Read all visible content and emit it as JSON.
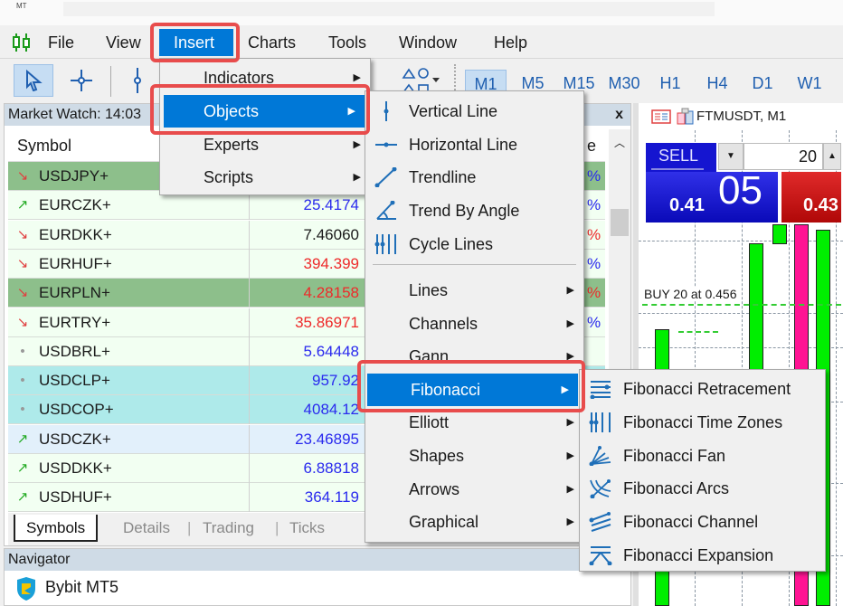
{
  "window": {
    "title_fragment": "MT"
  },
  "menubar": {
    "items": [
      "File",
      "View",
      "Insert",
      "Charts",
      "Tools",
      "Window",
      "Help"
    ],
    "active": "Insert"
  },
  "toolbar": {
    "timeframes": [
      "M1",
      "M5",
      "M15",
      "M30",
      "H1",
      "H4",
      "D1",
      "W1"
    ],
    "active_timeframe": "M1"
  },
  "market_watch": {
    "title": "Market Watch: 14:03",
    "close": "x",
    "column_symbol": "Symbol",
    "column_change_fragment": "e",
    "rows": [
      {
        "symbol": "USDJPY+",
        "price": "",
        "trend": "down",
        "pct": "%",
        "price_color": "#1a1a1a",
        "pct_color": "#2a2aee",
        "bg": "#8dbf8b"
      },
      {
        "symbol": "EURCZK+",
        "price": "25.4174",
        "trend": "up",
        "pct": "%",
        "price_color": "#2a2aee",
        "pct_color": "#2a2aee",
        "bg": "#f2fff2"
      },
      {
        "symbol": "EURDKK+",
        "price": "7.46060",
        "trend": "down",
        "pct": "%",
        "price_color": "#1a1a1a",
        "pct_color": "#ee2a2a",
        "bg": "#f2fff2"
      },
      {
        "symbol": "EURHUF+",
        "price": "394.399",
        "trend": "down",
        "pct": "%",
        "price_color": "#ee2a2a",
        "pct_color": "#2a2aee",
        "bg": "#f2fff2"
      },
      {
        "symbol": "EURPLN+",
        "price": "4.28158",
        "trend": "down",
        "pct": "%",
        "price_color": "#ee2a2a",
        "pct_color": "#ee2a2a",
        "bg": "#8dbf8b"
      },
      {
        "symbol": "EURTRY+",
        "price": "35.86971",
        "trend": "down",
        "pct": "%",
        "price_color": "#ee2a2a",
        "pct_color": "#2a2aee",
        "bg": "#f2fff2"
      },
      {
        "symbol": "USDBRL+",
        "price": "5.64448",
        "trend": "flat",
        "pct": "",
        "price_color": "#2a2aee",
        "pct_color": "#2a2aee",
        "bg": "#f2fff2"
      },
      {
        "symbol": "USDCLP+",
        "price": "957.92",
        "trend": "flat",
        "pct": "",
        "price_color": "#2a2aee",
        "pct_color": "#2a2aee",
        "bg": "#aeeaea"
      },
      {
        "symbol": "USDCOP+",
        "price": "4084.12",
        "trend": "flat",
        "pct": "",
        "price_color": "#2a2aee",
        "pct_color": "#2a2aee",
        "bg": "#aeeaea"
      },
      {
        "symbol": "USDCZK+",
        "price": "23.46895",
        "trend": "up",
        "pct": "",
        "price_color": "#2a2aee",
        "pct_color": "#2a2aee",
        "bg": "#e2f0fb"
      },
      {
        "symbol": "USDDKK+",
        "price": "6.88818",
        "trend": "up",
        "pct": "",
        "price_color": "#2a2aee",
        "pct_color": "#2a2aee",
        "bg": "#f2fff2"
      },
      {
        "symbol": "USDHUF+",
        "price": "364.119",
        "trend": "up",
        "pct": "",
        "price_color": "#2a2aee",
        "pct_color": "#2a2aee",
        "bg": "#f2fff2"
      }
    ],
    "tabs": [
      "Symbols",
      "Details",
      "Trading",
      "Ticks"
    ],
    "active_tab": "Symbols"
  },
  "navigator": {
    "title": "Navigator",
    "items": [
      "Bybit MT5"
    ]
  },
  "chart": {
    "symbol": "FTMUSDT, M1",
    "sell_label": "SELL",
    "volume": "20",
    "bid_small": "0.41",
    "bid_big": "05",
    "ask_small": "0.43",
    "order_line": "BUY 20 at 0.456",
    "colors": {
      "bull": "#00ee00",
      "bear": "#ff1493",
      "sell": "#1515d0",
      "buy": "#cc1010"
    }
  },
  "insert_menu": {
    "items": [
      {
        "label": "Indicators",
        "submenu": true
      },
      {
        "label": "Objects",
        "submenu": true,
        "highlighted": true
      },
      {
        "label": "Experts",
        "submenu": true
      },
      {
        "label": "Scripts",
        "submenu": true
      }
    ]
  },
  "objects_menu": {
    "items": [
      {
        "label": "Vertical Line",
        "icon": "vertical-line-icon"
      },
      {
        "label": "Horizontal Line",
        "icon": "horizontal-line-icon"
      },
      {
        "label": "Trendline",
        "icon": "trendline-icon"
      },
      {
        "label": "Trend By Angle",
        "icon": "trend-angle-icon"
      },
      {
        "label": "Cycle Lines",
        "icon": "cycle-lines-icon"
      }
    ],
    "groups": [
      {
        "label": "Lines"
      },
      {
        "label": "Channels"
      },
      {
        "label": "Gann"
      },
      {
        "label": "Fibonacci",
        "highlighted": true
      },
      {
        "label": "Elliott"
      },
      {
        "label": "Shapes"
      },
      {
        "label": "Arrows"
      },
      {
        "label": "Graphical"
      }
    ]
  },
  "fibonacci_menu": {
    "items": [
      {
        "label": "Fibonacci Retracement",
        "icon": "fib-retracement-icon"
      },
      {
        "label": "Fibonacci Time Zones",
        "icon": "fib-time-zones-icon"
      },
      {
        "label": "Fibonacci Fan",
        "icon": "fib-fan-icon"
      },
      {
        "label": "Fibonacci Arcs",
        "icon": "fib-arcs-icon"
      },
      {
        "label": "Fibonacci Channel",
        "icon": "fib-channel-icon"
      },
      {
        "label": "Fibonacci Expansion",
        "icon": "fib-expansion-icon"
      }
    ]
  },
  "accent": "#0078d7",
  "highlight_outline": "#e84c4c"
}
